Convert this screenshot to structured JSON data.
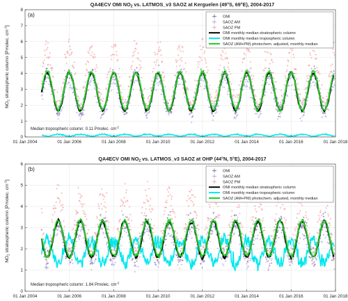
{
  "figure": {
    "background": "#ffffff"
  },
  "colors": {
    "omi": "#7e7e9a",
    "saoz_am": "#a9a6ee",
    "saoz_pm": "#f5a3a3",
    "omi_strat_median": "#000000",
    "omi_trop_median": "#00e8ee",
    "saoz_adjusted_median": "#1fd21f"
  },
  "chart_data": [
    {
      "panel_label": "(a)",
      "type": "line",
      "title": "QA4ECV OMI NO2 vs. LATMOS_v3 SAOZ at Kerguelen (49°S, 69°E), 2004-2017",
      "title_parts": {
        "pre": "QA4ECV OMI NO",
        "sub": "2",
        "post": " vs. LATMOS_v3 SAOZ at Kerguelen (49°S, 69°E), 2004-2017"
      },
      "ylabel": "NO2 stratospheric column [Pmolec. cm-2]",
      "ylabel_parts": {
        "pre": "NO",
        "sub": "2",
        "mid": " stratospheric column [Pmolec. cm",
        "sup": "-2",
        "post": "]"
      },
      "xlim": [
        "2004-01-01",
        "2018-01-01"
      ],
      "ylim": [
        0,
        8
      ],
      "yticks": [
        0,
        1,
        2,
        3,
        4,
        5,
        6,
        7,
        8
      ],
      "xtick_labels": [
        "01 Jan 2004",
        "01 Jan 2006",
        "01 Jan 2008",
        "01 Jan 2010",
        "01 Jan 2012",
        "01 Jan 2014",
        "01 Jan 2016",
        "01 Jan 2018"
      ],
      "grid": true,
      "legend_position": "top-right",
      "annotation_parts": {
        "pre": "Median tropospheric column:   0.11 Pmolec. cm",
        "sup": "-2"
      },
      "series": [
        {
          "name": "OMI",
          "style": "plus",
          "color_key": "omi"
        },
        {
          "name": "SAOZ AM",
          "style": "plus",
          "color_key": "saoz_am"
        },
        {
          "name": "SAOZ PM",
          "style": "plus",
          "color_key": "saoz_pm"
        },
        {
          "name": "OMI monthly median stratospheric column",
          "style": "line",
          "color_key": "omi_strat_median"
        },
        {
          "name": "OMI monthly median tropospheric column",
          "style": "line",
          "color_key": "omi_trop_median"
        },
        {
          "name": "SAOZ (AM+PM) photochem. adjusted, monthly median",
          "style": "line",
          "color_key": "saoz_adjusted_median"
        }
      ],
      "seasonal_model": {
        "start": 2004.75,
        "end": 2017.95,
        "peak_phase": 0.0,
        "strat_mean": 2.85,
        "strat_amp": 1.2,
        "am_offset": -0.35,
        "pm_offset": 1.45,
        "omi_offset": 0.0,
        "trop_mean": 0.11,
        "trop_amp": 0.06,
        "scatter": {
          "am": 0.5,
          "pm": 0.6,
          "omi": 0.35
        }
      }
    },
    {
      "panel_label": "(b)",
      "type": "line",
      "title": "QA4ECV OMI NO2 vs. LATMOS_v3 SAOZ at OHP (44°N, 5°E), 2004-2017",
      "title_parts": {
        "pre": "QA4ECV OMI NO",
        "sub": "2",
        "post": " vs. LATMOS_v3 SAOZ at OHP (44°N, 5°E), 2004-2017"
      },
      "ylabel": "NO2 stratospheric column [Pmolec. cm-2]",
      "ylabel_parts": {
        "pre": "NO",
        "sub": "2",
        "mid": " stratospheric column [Pmolec. cm",
        "sup": "-2",
        "post": "]"
      },
      "xlim": [
        "2004-01-01",
        "2018-01-01"
      ],
      "ylim": [
        0,
        6
      ],
      "yticks": [
        0,
        1,
        2,
        3,
        4,
        5,
        6
      ],
      "xtick_labels": [
        "01 Jan 2004",
        "01 Jan 2006",
        "01 Jan 2008",
        "01 Jan 2010",
        "01 Jan 2012",
        "01 Jan 2014",
        "01 Jan 2016",
        "01 Jan 2018"
      ],
      "grid": true,
      "legend_position": "top-right",
      "annotation_parts": {
        "pre": "Median tropospheric column:   1.84 Pmolec. cm",
        "sup": "-2"
      },
      "series": [
        {
          "name": "OMI",
          "style": "plus",
          "color_key": "omi"
        },
        {
          "name": "SAOZ AM",
          "style": "plus",
          "color_key": "saoz_am"
        },
        {
          "name": "SAOZ PM",
          "style": "plus",
          "color_key": "saoz_pm"
        },
        {
          "name": "OMI monthly median stratospheric column",
          "style": "line",
          "color_key": "omi_strat_median"
        },
        {
          "name": "OMI monthly median tropospheric column",
          "style": "line",
          "color_key": "omi_trop_median"
        },
        {
          "name": "SAOZ (AM+PM) photochem. adjusted, monthly median",
          "style": "line",
          "color_key": "saoz_adjusted_median"
        }
      ],
      "seasonal_model": {
        "start": 2004.75,
        "end": 2017.95,
        "peak_phase": 0.5,
        "strat_mean": 2.45,
        "strat_amp": 0.85,
        "am_offset": -0.25,
        "pm_offset": 1.25,
        "omi_offset": 0.0,
        "trop_mean": 1.85,
        "trop_amp": 0.55,
        "scatter": {
          "am": 0.45,
          "pm": 0.55,
          "omi": 0.4
        }
      }
    }
  ]
}
